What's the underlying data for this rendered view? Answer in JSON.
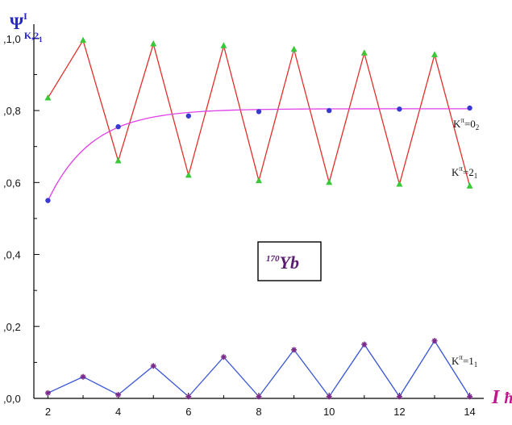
{
  "chart_data": {
    "type": "line",
    "ylabel": {
      "main": "Ψ",
      "sup": "I",
      "sub": "K,2",
      "subsub": "1"
    },
    "xlabel": {
      "main": "I",
      "unit": "ħ"
    },
    "annotation": {
      "mass": "170",
      "element": "Yb"
    },
    "xlim": [
      1.6,
      14.4
    ],
    "ylim": [
      0,
      1.04
    ],
    "x_ticks": [
      "2",
      "4",
      "6",
      "8",
      "10",
      "12",
      "14"
    ],
    "y_tick_labels": [
      ",0,0",
      ",0,2",
      ",0,4",
      ",0,6",
      ",0,8",
      ",1,0"
    ],
    "y_tick_values": [
      0.0,
      0.2,
      0.4,
      0.6,
      0.8,
      1.0
    ],
    "series": [
      {
        "label": {
          "base": "K",
          "sup": "π",
          "eq": "=2",
          "sub": "1"
        },
        "line_color": "#e0302a",
        "marker": "triangle",
        "marker_color": "#38c838",
        "x": [
          2,
          3,
          4,
          5,
          6,
          7,
          8,
          9,
          10,
          11,
          12,
          13,
          14
        ],
        "values": [
          0.835,
          0.995,
          0.66,
          0.985,
          0.62,
          0.98,
          0.605,
          0.97,
          0.6,
          0.96,
          0.595,
          0.955,
          0.59
        ]
      },
      {
        "label": {
          "base": "K",
          "sup": "π",
          "eq": "=0",
          "sub": "2"
        },
        "line_color": "#e040e8",
        "marker": "circle",
        "marker_color": "#3a3ad2",
        "smooth": true,
        "x": [
          2,
          4,
          6,
          8,
          10,
          12,
          14
        ],
        "values": [
          0.55,
          0.755,
          0.785,
          0.797,
          0.8,
          0.804,
          0.807
        ]
      },
      {
        "label": {
          "base": "K",
          "sup": "π",
          "eq": "=1",
          "sub": "1"
        },
        "line_color": "#3a56d8",
        "marker": "star",
        "marker_color": "#7a2a8a",
        "x": [
          2,
          3,
          4,
          5,
          6,
          7,
          8,
          9,
          10,
          11,
          12,
          13,
          14
        ],
        "values": [
          0.015,
          0.06,
          0.01,
          0.09,
          0.005,
          0.115,
          0.005,
          0.135,
          0.005,
          0.15,
          0.005,
          0.16,
          0.005
        ]
      }
    ]
  }
}
